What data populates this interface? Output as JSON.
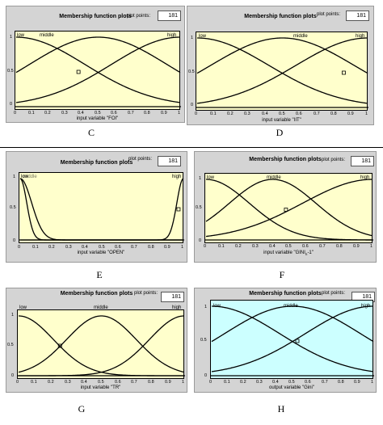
{
  "colors": {
    "panel_bg": "#d4d4d4",
    "plot_bg": "#ffffcc",
    "plot_bg_h": "#ccffff",
    "curve": "#000000"
  },
  "panels": [
    {
      "id": "C",
      "caption": "C",
      "title": "Membership function plots",
      "points_label": "plot points:",
      "points_value": "181",
      "xlabel": "input variable \"FOI\"",
      "bg": "#ffffcc",
      "labels": [
        "low",
        "middle",
        "high"
      ],
      "xticks": [
        "0",
        "0.1",
        "0.2",
        "0.3",
        "0.4",
        "0.5",
        "0.6",
        "0.7",
        "0.8",
        "0.9",
        "1"
      ],
      "yticks": [
        "1",
        "0.5",
        "0"
      ],
      "mfs": [
        {
          "type": "gauss",
          "c": 0,
          "s": 0.42
        },
        {
          "type": "gauss",
          "c": 0.5,
          "s": 0.42
        },
        {
          "type": "gauss",
          "c": 1,
          "s": 0.42
        }
      ],
      "marker": [
        0.38,
        0.5
      ]
    },
    {
      "id": "D",
      "caption": "D",
      "title": "Membership function plots",
      "points_label": "plot points:",
      "points_value": "181",
      "xlabel": "input variable \"IIT\"",
      "bg": "#ffffcc",
      "labels": [
        "low",
        "middle",
        "high"
      ],
      "xticks": [
        "0",
        "0.1",
        "0.2",
        "0.3",
        "0.4",
        "0.5",
        "0.6",
        "0.7",
        "0.8",
        "0.9",
        "1"
      ],
      "yticks": [
        "1",
        "0.5",
        "0"
      ],
      "mfs": [
        {
          "type": "gauss",
          "c": 0,
          "s": 0.42
        },
        {
          "type": "gauss",
          "c": 0.5,
          "s": 0.42
        },
        {
          "type": "gauss",
          "c": 1,
          "s": 0.42
        }
      ],
      "marker": [
        0.86,
        0.5
      ]
    },
    {
      "id": "E",
      "caption": "E",
      "title": "Membership function plots",
      "points_label": "plot points:",
      "points_value": "181",
      "xlabel": "input variable \"OPEN\"",
      "bg": "#ffffcc",
      "labels": [
        "low",
        "middle",
        "high"
      ],
      "xticks": [
        "0",
        "0.1",
        "0.2",
        "0.3",
        "0.4",
        "0.5",
        "0.6",
        "0.7",
        "0.8",
        "0.9",
        "1"
      ],
      "yticks": [
        "1",
        "0.5",
        "0"
      ],
      "mfs": [
        {
          "type": "gauss",
          "c": 0,
          "s": 0.04
        },
        {
          "type": "gauss",
          "c": 0,
          "s": 0.07
        },
        {
          "type": "gauss",
          "c": 1,
          "s": 0.04
        }
      ],
      "marker": [
        0.97,
        0.5
      ]
    },
    {
      "id": "F",
      "caption": "F",
      "title": "Membership function plots",
      "points_label": "plot points:",
      "points_value": "181",
      "xlabel": "input variable \"GINI",
      "xlabel_sub": "n",
      "xlabel_tail": "-1\"",
      "bg": "#ffffcc",
      "labels": [
        "low",
        "middle",
        "high"
      ],
      "xticks": [
        "0",
        "0.1",
        "0.2",
        "0.3",
        "0.4",
        "0.5",
        "0.6",
        "0.7",
        "0.8",
        "0.9",
        "1"
      ],
      "yticks": [
        "1",
        "0.5",
        "0"
      ],
      "mfs": [
        {
          "type": "gauss",
          "c": 0,
          "s": 0.26
        },
        {
          "type": "gauss",
          "c": 0.4,
          "s": 0.26
        },
        {
          "type": "gauss",
          "c": 1,
          "s": 0.42
        }
      ],
      "marker": [
        0.48,
        0.5
      ]
    },
    {
      "id": "G",
      "caption": "G",
      "title": "Membership function plots",
      "points_label": "plot points:",
      "points_value": "181",
      "xlabel": "input variable \"TR\"",
      "bg": "#ffffcc",
      "labels": [
        "low",
        "middle",
        "high"
      ],
      "xticks": [
        "0",
        "0.1",
        "0.2",
        "0.3",
        "0.4",
        "0.5",
        "0.6",
        "0.7",
        "0.8",
        "0.9",
        "1"
      ],
      "yticks": [
        "1",
        "0.5",
        "0"
      ],
      "mfs": [
        {
          "type": "gauss",
          "c": 0,
          "s": 0.21
        },
        {
          "type": "gauss",
          "c": 0.5,
          "s": 0.21
        },
        {
          "type": "gauss",
          "c": 1,
          "s": 0.21
        }
      ],
      "marker": [
        0.25,
        0.5
      ]
    },
    {
      "id": "H",
      "caption": "H",
      "title": "Membership function plots",
      "points_label": "plot points:",
      "points_value": "181",
      "xlabel": "output variable \"Gini\"",
      "bg": "#ccffff",
      "labels": [
        "low",
        "middle",
        "high"
      ],
      "xticks": [
        "0",
        "0.1",
        "0.2",
        "0.3",
        "0.4",
        "0.5",
        "0.6",
        "0.7",
        "0.8",
        "0.9",
        "1"
      ],
      "yticks": [
        "1",
        "0.5",
        "0"
      ],
      "mfs": [
        {
          "type": "gauss",
          "c": 0,
          "s": 0.42
        },
        {
          "type": "gauss",
          "c": 0.5,
          "s": 0.42
        },
        {
          "type": "gauss",
          "c": 1,
          "s": 0.42
        }
      ],
      "marker": [
        0.53,
        0.5
      ]
    }
  ]
}
